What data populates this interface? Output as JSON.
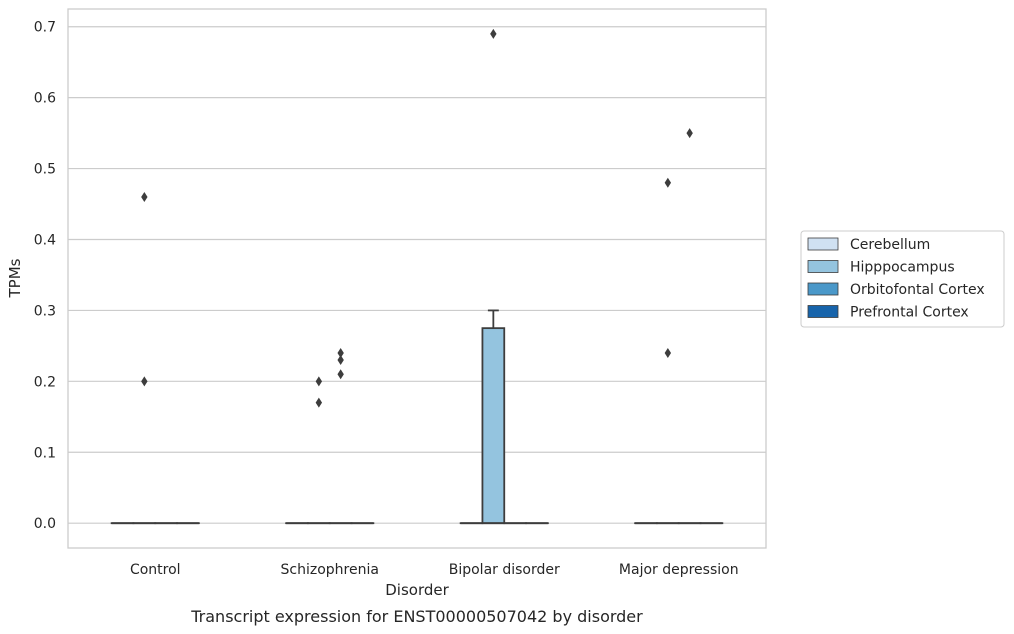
{
  "chart_data": {
    "type": "box",
    "xlabel": "Disorder",
    "ylabel": "TPMs",
    "caption": "Transcript expression for ENST00000507042 by disorder",
    "categories": [
      "Control",
      "Schizophrenia",
      "Bipolar disorder",
      "Major depression"
    ],
    "ylim": [
      -0.035,
      0.725
    ],
    "yticks": [
      "0.0",
      "0.1",
      "0.2",
      "0.3",
      "0.4",
      "0.5",
      "0.6",
      "0.7"
    ],
    "grid": true,
    "legend_position": "right",
    "series": [
      {
        "name": "Cerebellum",
        "color": "#d0e1f2",
        "boxes": [
          {
            "category": "Control",
            "q1": 0,
            "median": 0,
            "q3": 0,
            "whisker_low": 0,
            "whisker_high": 0,
            "outliers": []
          },
          {
            "category": "Schizophrenia",
            "q1": 0,
            "median": 0,
            "q3": 0,
            "whisker_low": 0,
            "whisker_high": 0,
            "outliers": []
          },
          {
            "category": "Bipolar disorder",
            "q1": 0,
            "median": 0,
            "q3": 0,
            "whisker_low": 0,
            "whisker_high": 0,
            "outliers": []
          },
          {
            "category": "Major depression",
            "q1": 0,
            "median": 0,
            "q3": 0,
            "whisker_low": 0,
            "whisker_high": 0,
            "outliers": []
          }
        ]
      },
      {
        "name": "Hipppocampus",
        "color": "#94c4df",
        "boxes": [
          {
            "category": "Control",
            "q1": 0,
            "median": 0,
            "q3": 0,
            "whisker_low": 0,
            "whisker_high": 0,
            "outliers": [
              0.46,
              0.2
            ]
          },
          {
            "category": "Schizophrenia",
            "q1": 0,
            "median": 0,
            "q3": 0,
            "whisker_low": 0,
            "whisker_high": 0,
            "outliers": [
              0.2,
              0.17
            ]
          },
          {
            "category": "Bipolar disorder",
            "q1": 0,
            "median": 0,
            "q3": 0.275,
            "whisker_low": 0,
            "whisker_high": 0.3,
            "outliers": [
              0.69
            ]
          },
          {
            "category": "Major depression",
            "q1": 0,
            "median": 0,
            "q3": 0,
            "whisker_low": 0,
            "whisker_high": 0,
            "outliers": [
              0.48,
              0.24
            ]
          }
        ]
      },
      {
        "name": "Orbitofontal Cortex",
        "color": "#4a98c9",
        "boxes": [
          {
            "category": "Control",
            "q1": 0,
            "median": 0,
            "q3": 0,
            "whisker_low": 0,
            "whisker_high": 0,
            "outliers": []
          },
          {
            "category": "Schizophrenia",
            "q1": 0,
            "median": 0,
            "q3": 0,
            "whisker_low": 0,
            "whisker_high": 0,
            "outliers": [
              0.24,
              0.23,
              0.21
            ]
          },
          {
            "category": "Bipolar disorder",
            "q1": 0,
            "median": 0,
            "q3": 0,
            "whisker_low": 0,
            "whisker_high": 0,
            "outliers": []
          },
          {
            "category": "Major depression",
            "q1": 0,
            "median": 0,
            "q3": 0,
            "whisker_low": 0,
            "whisker_high": 0,
            "outliers": [
              0.55
            ]
          }
        ]
      },
      {
        "name": "Prefrontal Cortex",
        "color": "#1764ab",
        "boxes": [
          {
            "category": "Control",
            "q1": 0,
            "median": 0,
            "q3": 0,
            "whisker_low": 0,
            "whisker_high": 0,
            "outliers": []
          },
          {
            "category": "Schizophrenia",
            "q1": 0,
            "median": 0,
            "q3": 0,
            "whisker_low": 0,
            "whisker_high": 0,
            "outliers": []
          },
          {
            "category": "Bipolar disorder",
            "q1": 0,
            "median": 0,
            "q3": 0,
            "whisker_low": 0,
            "whisker_high": 0,
            "outliers": []
          },
          {
            "category": "Major depression",
            "q1": 0,
            "median": 0,
            "q3": 0,
            "whisker_low": 0,
            "whisker_high": 0,
            "outliers": []
          }
        ]
      }
    ]
  }
}
